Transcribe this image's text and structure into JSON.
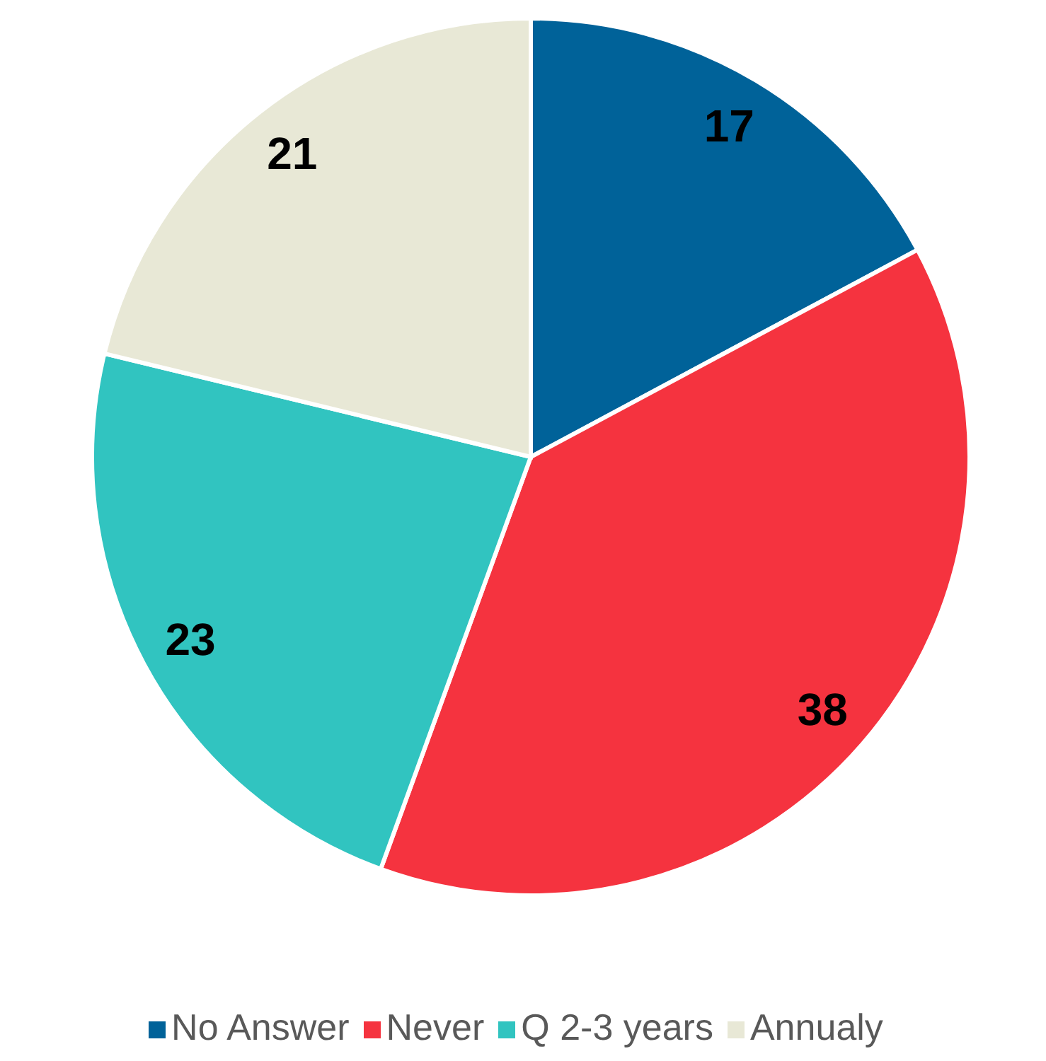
{
  "chart_data": {
    "type": "pie",
    "categories": [
      "No Answer",
      "Never",
      "Q 2-3 years",
      "Annualy"
    ],
    "values": [
      17,
      38,
      23,
      21
    ],
    "colors": [
      "#006299",
      "#f5333f",
      "#31c4c0",
      "#e8e8d6"
    ],
    "data_labels": true,
    "legend": "bottom"
  }
}
